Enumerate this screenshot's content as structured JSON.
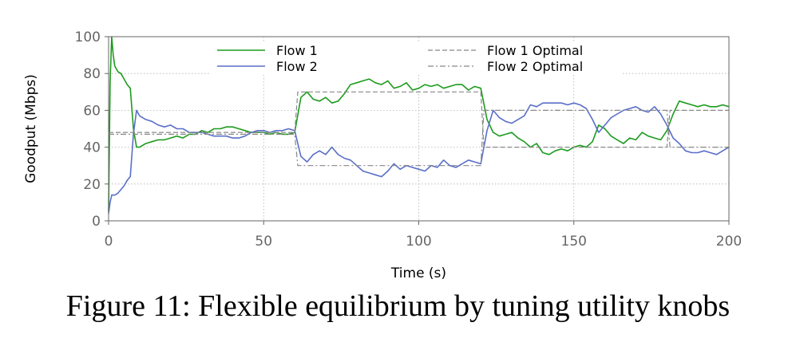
{
  "figure": {
    "caption": "Figure 11: Flexible equilibrium by tuning utility knobs"
  },
  "colors": {
    "flow1": "#1e9b1e",
    "flow2": "#5a6fc8",
    "optimal": "#888888",
    "grid": "#b0b0b0",
    "axis": "#666666"
  },
  "chart_data": {
    "type": "line",
    "title": "",
    "xlabel": "Time (s)",
    "ylabel": "Goodput (Mbps)",
    "xlim": [
      0,
      200
    ],
    "ylim": [
      0,
      100
    ],
    "xticks": [
      0,
      50,
      100,
      150,
      200
    ],
    "yticks": [
      0,
      20,
      40,
      60,
      80,
      100
    ],
    "grid": true,
    "legend_position": "top",
    "series": [
      {
        "name": "Flow 1",
        "style": "solid",
        "color": "#1e9b1e",
        "x": [
          0,
          0.5,
          1,
          1.5,
          2,
          3,
          4,
          5,
          6,
          7,
          8,
          9,
          10,
          12,
          14,
          16,
          18,
          20,
          22,
          24,
          26,
          28,
          30,
          32,
          34,
          36,
          38,
          40,
          42,
          44,
          46,
          48,
          50,
          52,
          54,
          56,
          58,
          60,
          62,
          64,
          66,
          68,
          70,
          72,
          74,
          76,
          78,
          80,
          82,
          84,
          86,
          88,
          90,
          92,
          94,
          96,
          98,
          100,
          102,
          104,
          106,
          108,
          110,
          112,
          114,
          116,
          118,
          120,
          122,
          124,
          126,
          128,
          130,
          132,
          134,
          136,
          138,
          140,
          142,
          144,
          146,
          148,
          150,
          152,
          154,
          156,
          158,
          160,
          162,
          164,
          166,
          168,
          170,
          172,
          174,
          176,
          178,
          180,
          182,
          184,
          186,
          188,
          190,
          192,
          194,
          196,
          198,
          200
        ],
        "y": [
          5,
          75,
          100,
          90,
          84,
          81,
          80,
          77,
          74,
          72,
          50,
          40,
          40,
          42,
          43,
          44,
          44,
          45,
          46,
          45,
          47,
          47,
          49,
          48,
          50,
          50,
          51,
          51,
          50,
          49,
          48,
          48,
          48,
          47,
          48,
          47,
          47,
          48,
          67,
          70,
          66,
          65,
          67,
          64,
          65,
          69,
          74,
          75,
          76,
          77,
          75,
          74,
          76,
          72,
          73,
          75,
          71,
          72,
          74,
          73,
          74,
          72,
          73,
          74,
          74,
          71,
          73,
          72,
          55,
          48,
          46,
          47,
          48,
          45,
          43,
          40,
          42,
          37,
          36,
          38,
          39,
          38,
          40,
          41,
          40,
          43,
          52,
          50,
          46,
          44,
          42,
          45,
          44,
          48,
          46,
          45,
          44,
          49,
          58,
          65,
          64,
          63,
          62,
          63,
          62,
          62,
          63,
          62
        ]
      },
      {
        "name": "Flow 2",
        "style": "solid",
        "color": "#5a6fc8",
        "x": [
          0,
          0.5,
          1,
          1.5,
          2,
          3,
          4,
          5,
          6,
          7,
          8,
          9,
          10,
          12,
          14,
          16,
          18,
          20,
          22,
          24,
          26,
          28,
          30,
          32,
          34,
          36,
          38,
          40,
          42,
          44,
          46,
          48,
          50,
          52,
          54,
          56,
          58,
          60,
          62,
          64,
          66,
          68,
          70,
          72,
          74,
          76,
          78,
          80,
          82,
          84,
          86,
          88,
          90,
          92,
          94,
          96,
          98,
          100,
          102,
          104,
          106,
          108,
          110,
          112,
          114,
          116,
          118,
          120,
          122,
          124,
          126,
          128,
          130,
          132,
          134,
          136,
          138,
          140,
          142,
          144,
          146,
          148,
          150,
          152,
          154,
          156,
          158,
          160,
          162,
          164,
          166,
          168,
          170,
          172,
          174,
          176,
          178,
          180,
          182,
          184,
          186,
          188,
          190,
          192,
          194,
          196,
          198,
          200
        ],
        "y": [
          4,
          10,
          14,
          14,
          14,
          15,
          17,
          19,
          22,
          24,
          47,
          60,
          57,
          55,
          54,
          52,
          51,
          52,
          50,
          50,
          48,
          48,
          48,
          47,
          46,
          46,
          46,
          45,
          45,
          46,
          48,
          49,
          49,
          48,
          49,
          49,
          50,
          49,
          35,
          32,
          36,
          38,
          36,
          40,
          36,
          34,
          33,
          30,
          27,
          26,
          25,
          24,
          27,
          31,
          28,
          30,
          29,
          28,
          27,
          30,
          29,
          33,
          30,
          29,
          31,
          33,
          32,
          31,
          49,
          60,
          56,
          54,
          53,
          55,
          57,
          63,
          62,
          64,
          64,
          64,
          64,
          63,
          64,
          63,
          61,
          55,
          48,
          52,
          56,
          58,
          60,
          61,
          62,
          60,
          59,
          62,
          58,
          52,
          45,
          42,
          38,
          37,
          37,
          38,
          37,
          36,
          38,
          40
        ]
      },
      {
        "name": "Flow 1 Optimal",
        "style": "dashed",
        "color": "#888888",
        "x": [
          0,
          60,
          61,
          120,
          121,
          180,
          181,
          200
        ],
        "y": [
          48,
          48,
          70,
          70,
          40,
          40,
          60,
          60
        ]
      },
      {
        "name": "Flow 2 Optimal",
        "style": "dashdot",
        "color": "#888888",
        "x": [
          0,
          60,
          61,
          120,
          121,
          180,
          181,
          200
        ],
        "y": [
          47,
          47,
          30,
          30,
          60,
          60,
          40,
          40
        ]
      }
    ]
  }
}
